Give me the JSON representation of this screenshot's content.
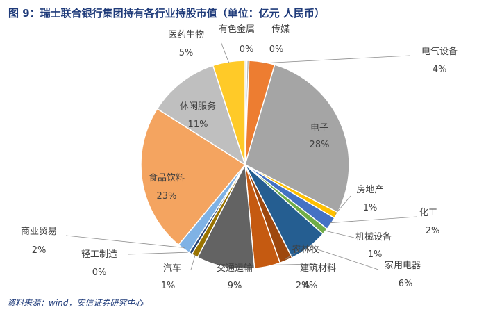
{
  "figure": {
    "title": "图 9：瑞士联合银行集团持有各行业持股市值（单位：亿元 人民币）",
    "source": "资料来源：wind，安信证券研究中心"
  },
  "chart_data": {
    "type": "pie",
    "title": "",
    "legend": "none",
    "slices": [
      {
        "name": "有色金属",
        "label": "0%",
        "value": 0.3,
        "color": "#5B9BD5"
      },
      {
        "name": "传媒",
        "label": "0%",
        "value": 0.3,
        "color": "#A5A5A5"
      },
      {
        "name": "电气设备",
        "label": "4%",
        "value": 4,
        "color": "#ED7D31"
      },
      {
        "name": "电子",
        "label": "28%",
        "value": 28,
        "color": "#A5A5A5"
      },
      {
        "name": "房地产",
        "label": "1%",
        "value": 1,
        "color": "#FFC000"
      },
      {
        "name": "化工",
        "label": "2%",
        "value": 2,
        "color": "#4472C4"
      },
      {
        "name": "机械设备",
        "label": "1%",
        "value": 1,
        "color": "#70AD47"
      },
      {
        "name": "家用电器",
        "label": "6%",
        "value": 6,
        "color": "#255E91"
      },
      {
        "name": "农林牧",
        "label": "2%",
        "value": 2,
        "color": "#9E480E"
      },
      {
        "name": "建筑材料",
        "label": "4%",
        "value": 4,
        "color": "#C55A11"
      },
      {
        "name": "交通运输",
        "label": "9%",
        "value": 9,
        "color": "#636363"
      },
      {
        "name": "汽车",
        "label": "1%",
        "value": 1,
        "color": "#997300"
      },
      {
        "name": "轻工制造",
        "label": "0%",
        "value": 0.5,
        "color": "#264478"
      },
      {
        "name": "商业贸易",
        "label": "2%",
        "value": 2,
        "color": "#7FB2E5"
      },
      {
        "name": "食品饮料",
        "label": "23%",
        "value": 23,
        "color": "#F4A460"
      },
      {
        "name": "休闲服务",
        "label": "11%",
        "value": 11,
        "color": "#BFBFBF"
      },
      {
        "name": "医药生物",
        "label": "5%",
        "value": 5,
        "color": "#FFCA28"
      }
    ]
  }
}
